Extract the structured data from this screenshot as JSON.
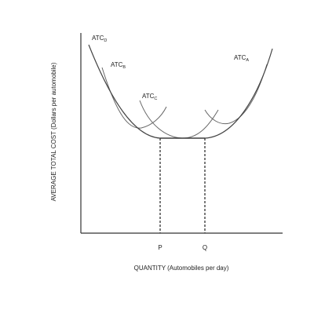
{
  "chart_data": {
    "type": "line",
    "xlabel": "QUANTITY (Automobiles per day)",
    "ylabel": "AVERAGE TOTAL COST (Dollars per automobile)",
    "x_ticks": [
      "P",
      "Q"
    ],
    "series": [
      {
        "name": "ATC",
        "subscript": "D"
      },
      {
        "name": "ATC",
        "subscript": "B"
      },
      {
        "name": "ATC",
        "subscript": "C"
      },
      {
        "name": "ATC",
        "subscript": "A"
      }
    ],
    "guides": "dashed vertical lines at P and Q from the flat bottom of the envelope curve down to the x-axis",
    "grid": false
  }
}
